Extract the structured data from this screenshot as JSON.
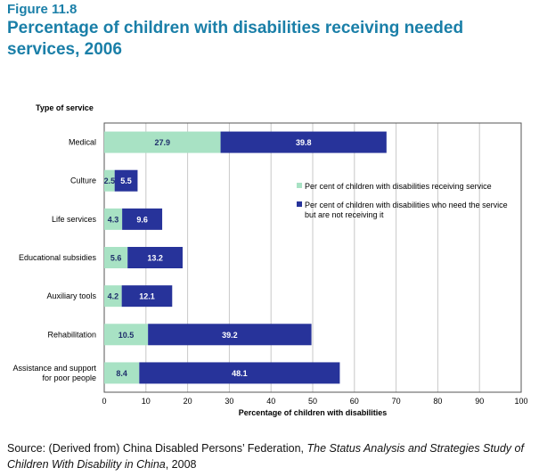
{
  "figure": {
    "label": "Figure 11.8",
    "title": "Percentage of children with disabilities receiving needed services, 2006"
  },
  "source": {
    "prefix": "Source: (Derived from) China Disabled Persons’ Federation, ",
    "italic": "The Status Analysis and Strategies Study of Children With Disability in China",
    "suffix": ", 2008"
  },
  "colors": {
    "receiving": "#a8e2c4",
    "not_receiving": "#27339a",
    "title": "#1a7fa8"
  },
  "chart_data": {
    "type": "bar",
    "orientation": "horizontal",
    "stacked": true,
    "category_axis_title": "Type of service",
    "xlabel": "Percentage of children with disabilities",
    "xlim": [
      0,
      100
    ],
    "xticks": [
      0,
      10,
      20,
      30,
      40,
      50,
      60,
      70,
      80,
      90,
      100
    ],
    "grid": true,
    "legend_position": "right",
    "categories": [
      "Medical",
      "Culture",
      "Life services",
      "Educational subsidies",
      "Auxiliary tools",
      "Rehabilitation",
      "Assistance and support for poor people"
    ],
    "series": [
      {
        "name": "Per cent of children with disabilities receiving service",
        "values": [
          27.9,
          2.5,
          4.3,
          5.6,
          4.2,
          10.5,
          8.4
        ]
      },
      {
        "name": "Per cent of children with disabilities who need the service but are not receiving it",
        "values": [
          39.8,
          5.5,
          9.6,
          13.2,
          12.1,
          39.2,
          48.1
        ]
      }
    ]
  }
}
